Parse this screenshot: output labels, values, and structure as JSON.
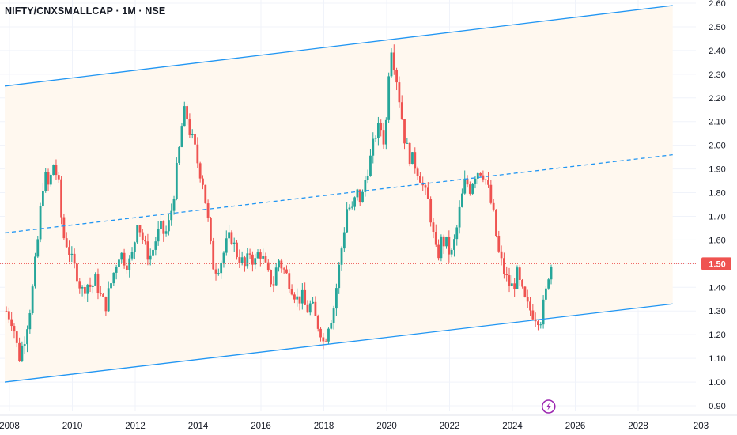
{
  "header": {
    "title": "NIFTY/CNXSMALLCAP · 1M · NSE"
  },
  "colors": {
    "up": "#26a69a",
    "down": "#ef5350",
    "channel": "#2196f3",
    "channel_fill": "#fff8ef",
    "last_price_line": "#ef5350",
    "badge_icon": "#9c27b0"
  },
  "badge_icon": "lightning-icon",
  "chart_data": {
    "type": "candlestick",
    "title": "NIFTY/CNXSMALLCAP · 1M · NSE",
    "xlabel": "",
    "ylabel": "",
    "y_ticks": [
      "2.60",
      "2.50",
      "2.40",
      "2.30",
      "2.20",
      "2.10",
      "2.00",
      "1.90",
      "1.80",
      "1.70",
      "1.60",
      "1.50",
      "1.40",
      "1.30",
      "1.20",
      "1.10",
      "1.00",
      "0.90"
    ],
    "x_ticks": [
      "2008",
      "2010",
      "2012",
      "2014",
      "2016",
      "2018",
      "2020",
      "2022",
      "2024",
      "2026",
      "2028",
      "203"
    ],
    "ylim": [
      0.89,
      2.6
    ],
    "xlim": [
      2007.85,
      2030.15
    ],
    "last_price": "1.50",
    "last_price_value": 1.5,
    "close_points": [
      [
        2007.9,
        1.3
      ],
      [
        2008.1,
        1.26
      ],
      [
        2008.3,
        1.1
      ],
      [
        2008.5,
        1.2
      ],
      [
        2008.7,
        1.35
      ],
      [
        2008.9,
        1.6
      ],
      [
        2009.0,
        1.75
      ],
      [
        2009.1,
        1.88
      ],
      [
        2009.25,
        1.82
      ],
      [
        2009.4,
        1.92
      ],
      [
        2009.55,
        1.85
      ],
      [
        2009.7,
        1.62
      ],
      [
        2009.85,
        1.58
      ],
      [
        2010.0,
        1.5
      ],
      [
        2010.15,
        1.46
      ],
      [
        2010.3,
        1.38
      ],
      [
        2010.45,
        1.42
      ],
      [
        2010.6,
        1.4
      ],
      [
        2010.75,
        1.43
      ],
      [
        2010.9,
        1.36
      ],
      [
        2011.05,
        1.32
      ],
      [
        2011.2,
        1.4
      ],
      [
        2011.35,
        1.48
      ],
      [
        2011.5,
        1.55
      ],
      [
        2011.65,
        1.52
      ],
      [
        2011.8,
        1.5
      ],
      [
        2011.95,
        1.55
      ],
      [
        2012.05,
        1.7
      ],
      [
        2012.2,
        1.62
      ],
      [
        2012.35,
        1.55
      ],
      [
        2012.5,
        1.53
      ],
      [
        2012.65,
        1.6
      ],
      [
        2012.8,
        1.65
      ],
      [
        2012.95,
        1.62
      ],
      [
        2013.1,
        1.68
      ],
      [
        2013.25,
        1.82
      ],
      [
        2013.4,
        1.98
      ],
      [
        2013.5,
        2.1
      ],
      [
        2013.6,
        2.15
      ],
      [
        2013.75,
        2.05
      ],
      [
        2013.9,
        1.98
      ],
      [
        2014.0,
        1.92
      ],
      [
        2014.15,
        1.85
      ],
      [
        2014.3,
        1.7
      ],
      [
        2014.45,
        1.5
      ],
      [
        2014.6,
        1.48
      ],
      [
        2014.75,
        1.52
      ],
      [
        2014.9,
        1.58
      ],
      [
        2015.05,
        1.62
      ],
      [
        2015.2,
        1.55
      ],
      [
        2015.35,
        1.52
      ],
      [
        2015.5,
        1.48
      ],
      [
        2015.65,
        1.55
      ],
      [
        2015.8,
        1.5
      ],
      [
        2015.95,
        1.56
      ],
      [
        2016.1,
        1.5
      ],
      [
        2016.25,
        1.44
      ],
      [
        2016.4,
        1.42
      ],
      [
        2016.55,
        1.52
      ],
      [
        2016.7,
        1.48
      ],
      [
        2016.85,
        1.44
      ],
      [
        2017.0,
        1.4
      ],
      [
        2017.15,
        1.35
      ],
      [
        2017.3,
        1.36
      ],
      [
        2017.45,
        1.3
      ],
      [
        2017.6,
        1.33
      ],
      [
        2017.75,
        1.26
      ],
      [
        2017.9,
        1.22
      ],
      [
        2018.0,
        1.16
      ],
      [
        2018.15,
        1.25
      ],
      [
        2018.3,
        1.3
      ],
      [
        2018.45,
        1.45
      ],
      [
        2018.6,
        1.6
      ],
      [
        2018.75,
        1.75
      ],
      [
        2018.9,
        1.72
      ],
      [
        2019.05,
        1.8
      ],
      [
        2019.2,
        1.76
      ],
      [
        2019.35,
        1.88
      ],
      [
        2019.5,
        1.95
      ],
      [
        2019.65,
        2.05
      ],
      [
        2019.8,
        2.08
      ],
      [
        2019.95,
        2.0
      ],
      [
        2020.05,
        2.3
      ],
      [
        2020.15,
        2.42
      ],
      [
        2020.3,
        2.3
      ],
      [
        2020.45,
        2.15
      ],
      [
        2020.6,
        2.0
      ],
      [
        2020.75,
        1.95
      ],
      [
        2020.9,
        1.92
      ],
      [
        2021.05,
        1.88
      ],
      [
        2021.2,
        1.8
      ],
      [
        2021.35,
        1.75
      ],
      [
        2021.5,
        1.6
      ],
      [
        2021.6,
        1.52
      ],
      [
        2021.75,
        1.6
      ],
      [
        2021.9,
        1.58
      ],
      [
        2022.05,
        1.53
      ],
      [
        2022.2,
        1.62
      ],
      [
        2022.35,
        1.75
      ],
      [
        2022.5,
        1.85
      ],
      [
        2022.65,
        1.82
      ],
      [
        2022.8,
        1.88
      ],
      [
        2022.95,
        1.9
      ],
      [
        2023.1,
        1.88
      ],
      [
        2023.25,
        1.8
      ],
      [
        2023.4,
        1.7
      ],
      [
        2023.55,
        1.55
      ],
      [
        2023.7,
        1.48
      ],
      [
        2023.85,
        1.42
      ],
      [
        2024.0,
        1.4
      ],
      [
        2024.15,
        1.45
      ],
      [
        2024.3,
        1.38
      ],
      [
        2024.45,
        1.32
      ],
      [
        2024.6,
        1.3
      ],
      [
        2024.75,
        1.28
      ],
      [
        2024.9,
        1.27
      ],
      [
        2025.05,
        1.36
      ],
      [
        2025.15,
        1.46
      ],
      [
        2025.25,
        1.5
      ]
    ],
    "channel": {
      "upper": [
        [
          2007.85,
          2.25
        ],
        [
          2029.1,
          2.59
        ]
      ],
      "mid": [
        [
          2007.85,
          1.63
        ],
        [
          2029.1,
          1.96
        ]
      ],
      "lower": [
        [
          2007.85,
          1.0
        ],
        [
          2029.1,
          1.33
        ]
      ]
    }
  }
}
